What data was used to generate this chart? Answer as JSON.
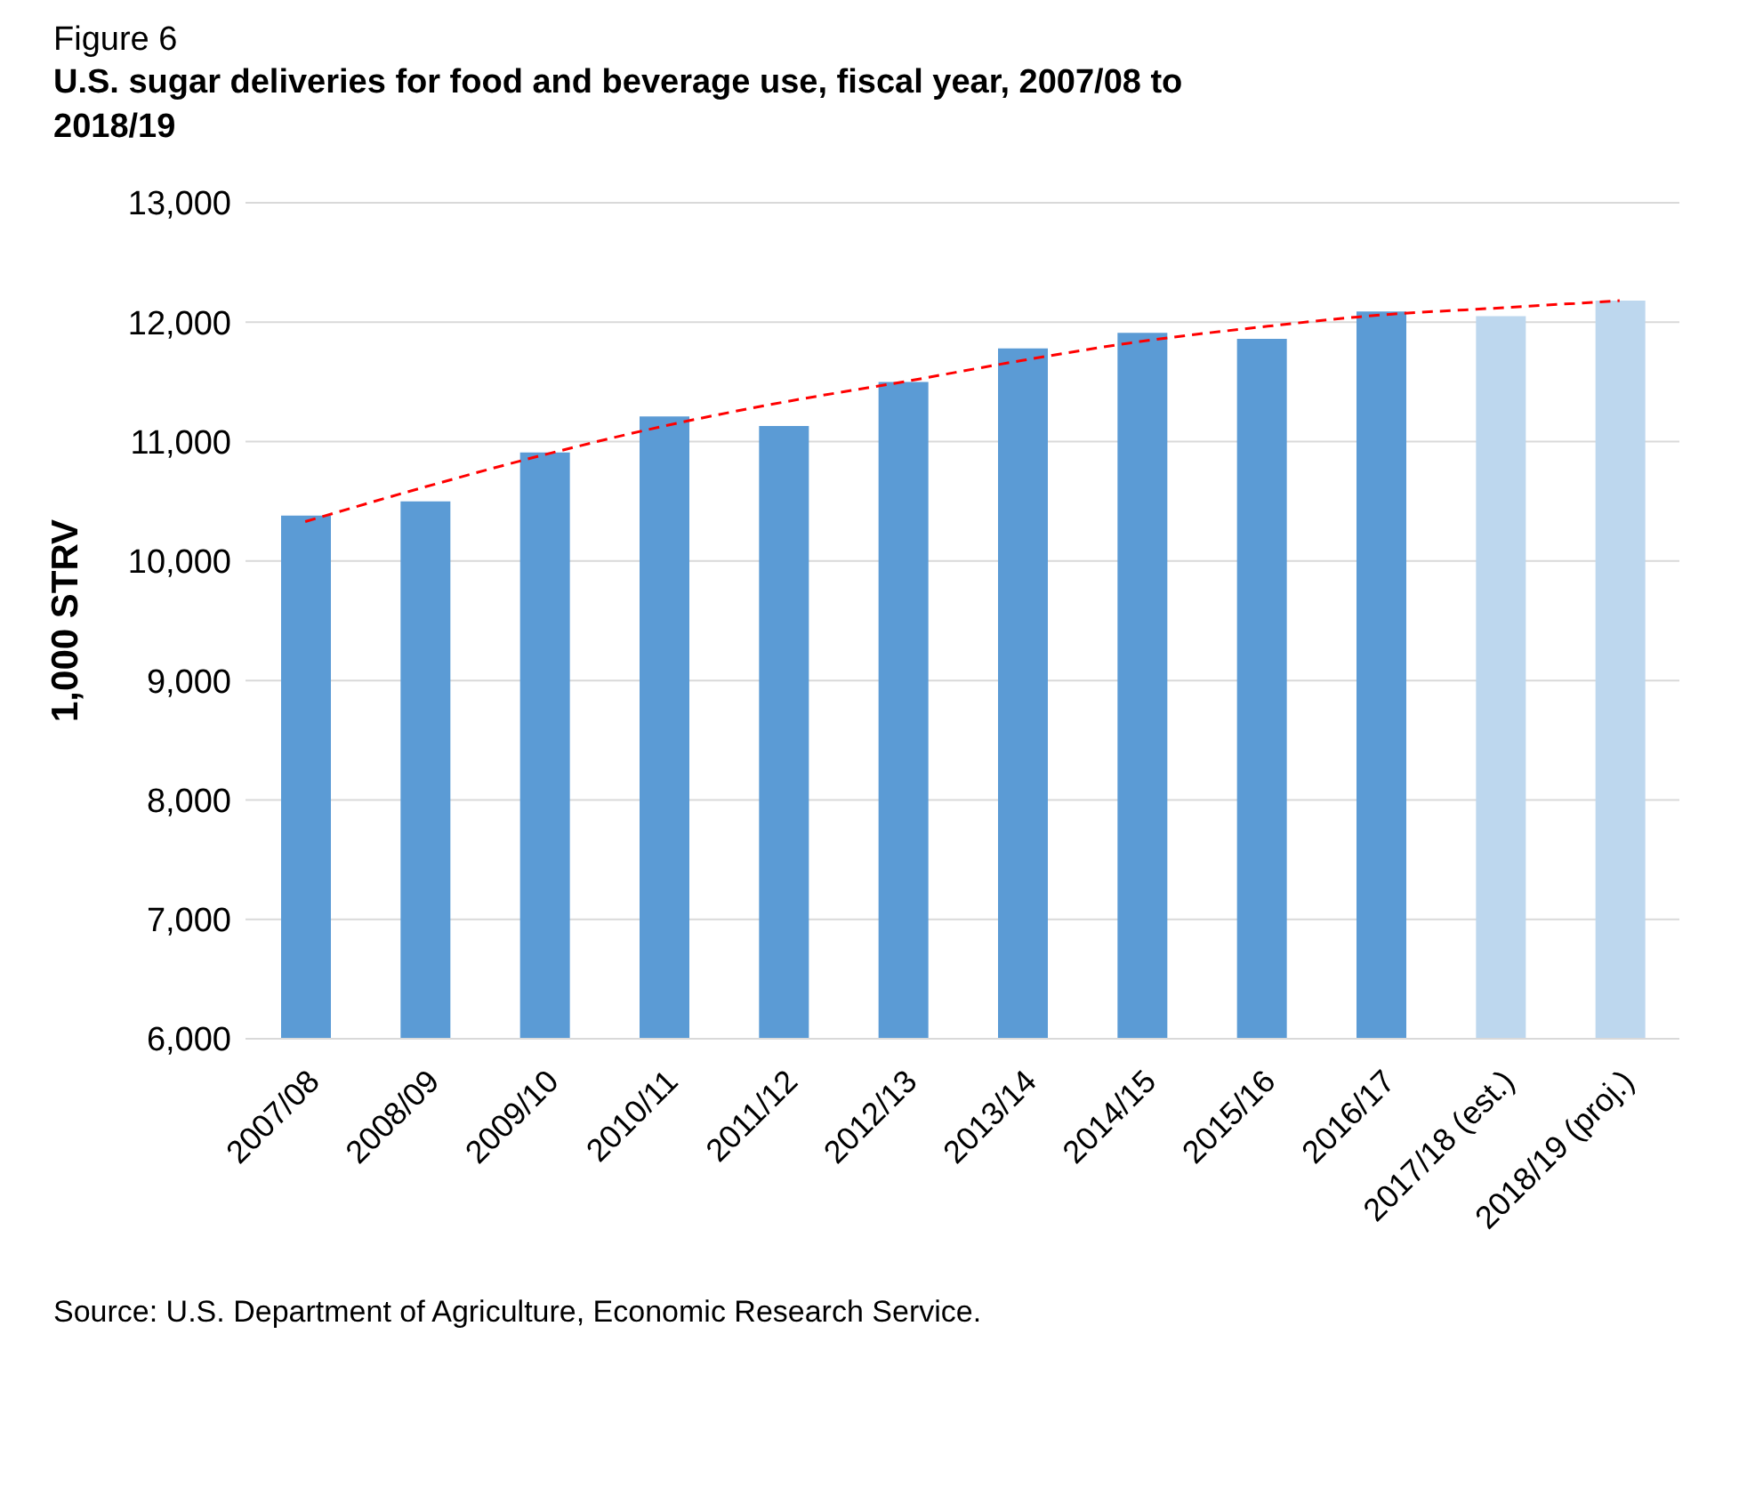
{
  "chart_data": {
    "type": "bar",
    "subtitle": "Figure 6",
    "title": "U.S. sugar deliveries for food and beverage use, fiscal year, 2007/08 to 2018/19",
    "ylabel": "1,000 STRV",
    "categories": [
      "2007/08",
      "2008/09",
      "2009/10",
      "2010/11",
      "2011/12",
      "2012/13",
      "2013/14",
      "2014/15",
      "2015/16",
      "2016/17",
      "2017/18 (est.)",
      "2018/19 (proj.)"
    ],
    "series": [
      {
        "values": [
          10380,
          10500,
          10910,
          11210,
          11130,
          11500,
          11780,
          11910,
          11860,
          12090,
          12050,
          12180
        ],
        "colors": [
          "#5b9bd5",
          "#5b9bd5",
          "#5b9bd5",
          "#5b9bd5",
          "#5b9bd5",
          "#5b9bd5",
          "#5b9bd5",
          "#5b9bd5",
          "#5b9bd5",
          "#5b9bd5",
          "#bdd7ee",
          "#bdd7ee"
        ]
      },
      {
        "type": "line",
        "color": "#ff0000",
        "line_style": "dashed",
        "marker": "none",
        "values": [
          10330,
          10620,
          10890,
          11130,
          11330,
          11500,
          11680,
          11840,
          11960,
          12060,
          12120,
          12180
        ]
      }
    ],
    "ylim": [
      6000,
      13000
    ],
    "yticks": [
      {
        "value": 6000,
        "label": "6,000"
      },
      {
        "value": 7000,
        "label": "7,000"
      },
      {
        "value": 8000,
        "label": "8,000"
      },
      {
        "value": 9000,
        "label": "9,000"
      },
      {
        "value": 10000,
        "label": "10,000"
      },
      {
        "value": 11000,
        "label": "11,000"
      },
      {
        "value": 12000,
        "label": "12,000"
      },
      {
        "value": 13000,
        "label": "13,000"
      }
    ],
    "grid": "y",
    "legend": false,
    "annotations": [
      "Source: U.S. Department of Agriculture, Economic Research Service."
    ]
  }
}
